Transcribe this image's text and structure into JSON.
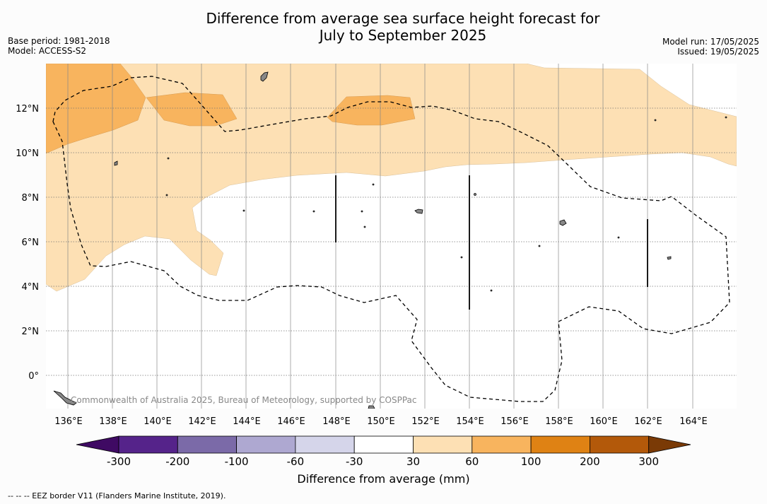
{
  "title_line1": "Difference from average sea surface height forecast for",
  "title_line2": "July to September 2025",
  "base_period": "Base period: 1981-2018",
  "model": "Model: ACCESS-S2",
  "model_run": "Model run: 17/05/2025",
  "issued": "Issued: 19/05/2025",
  "map": {
    "lat_labels": [
      "12°N",
      "10°N",
      "8°N",
      "6°N",
      "4°N",
      "2°N",
      "0°"
    ],
    "lon_labels": [
      "136°E",
      "138°E",
      "140°E",
      "142°E",
      "144°E",
      "146°E",
      "148°E",
      "150°E",
      "152°E",
      "154°E",
      "156°E",
      "158°E",
      "160°E",
      "162°E",
      "164°E"
    ],
    "copyright": "Commonwealth of Australia 2025, Bureau of Meteorology, supported by COSPPac"
  },
  "colorbar": {
    "ticks": [
      "-300",
      "-200",
      "-100",
      "-60",
      "-30",
      "30",
      "60",
      "100",
      "200",
      "300"
    ],
    "colors": [
      "#3f0a63",
      "#55238a",
      "#7b6aa8",
      "#aea8d1",
      "#d5d5ea",
      "#ffffff",
      "#fde0b4",
      "#f8b45e",
      "#df8214",
      "#b3590a",
      "#7a3a06"
    ],
    "label": "Difference from average (mm)"
  },
  "footnote": "--  --  -- EEZ border V11 (Flanders Marine Institute, 2019)."
}
